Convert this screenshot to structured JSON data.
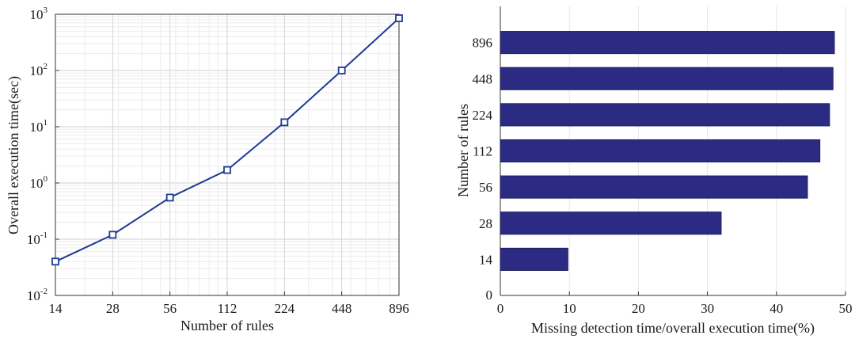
{
  "chart_data": [
    {
      "type": "line",
      "xlabel": "Number of rules",
      "ylabel": "Overall execution time(sec)",
      "x_scale": "log",
      "y_scale": "log",
      "xlim": [
        14,
        896
      ],
      "ylim": [
        0.01,
        1000
      ],
      "xticks": [
        "14",
        "28",
        "56",
        "112",
        "224",
        "448",
        "896"
      ],
      "yticks": [
        {
          "base": "10",
          "exp": "-2"
        },
        {
          "base": "10",
          "exp": "-1"
        },
        {
          "base": "10",
          "exp": "0"
        },
        {
          "base": "10",
          "exp": "1"
        },
        {
          "base": "10",
          "exp": "2"
        },
        {
          "base": "10",
          "exp": "3"
        }
      ],
      "grid": true,
      "marker": "square",
      "series": [
        {
          "x": [
            14,
            28,
            56,
            112,
            224,
            448,
            896
          ],
          "y": [
            0.04,
            0.12,
            0.55,
            1.7,
            12,
            100,
            850
          ]
        }
      ],
      "colors": {
        "line": "#1f3a93",
        "grid": "#d9d9d9"
      }
    },
    {
      "type": "bar",
      "orientation": "horizontal",
      "xlabel": "Missing detection time/overall execution time(%)",
      "ylabel": "Number of rules",
      "categories": [
        "14",
        "28",
        "56",
        "112",
        "224",
        "448",
        "896"
      ],
      "values": [
        9.8,
        32,
        44.5,
        46.3,
        47.7,
        48.2,
        48.4
      ],
      "xlim": [
        0,
        50
      ],
      "xticks": [
        "0",
        "10",
        "20",
        "30",
        "40",
        "50"
      ],
      "ytick_zero": "0",
      "grid": true,
      "colors": {
        "bar": "#2b2b83",
        "grid": "#e6e6e6"
      }
    }
  ]
}
